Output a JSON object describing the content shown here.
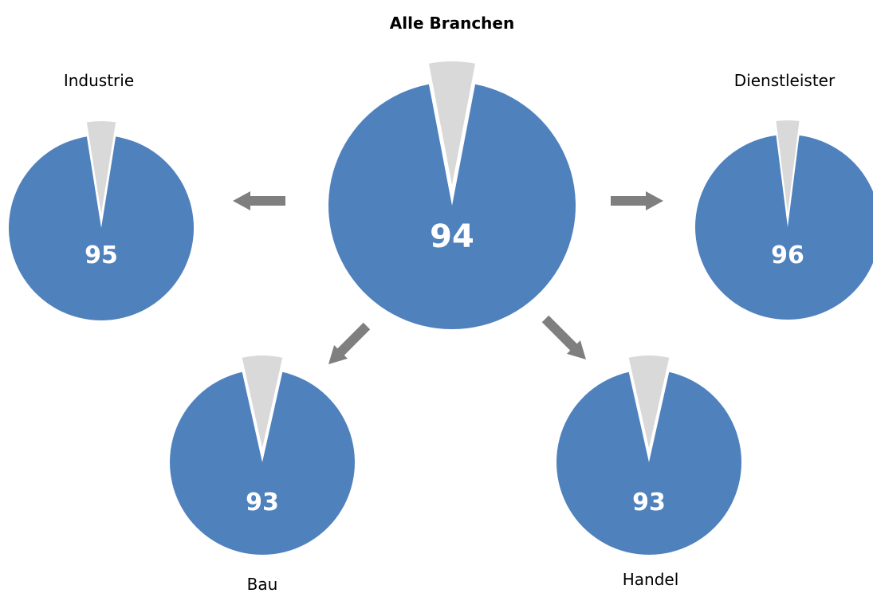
{
  "colors": {
    "primary": "#4f81bd",
    "remainder": "#d9d9d9",
    "arrow": "#7f7f7f",
    "background": "#ffffff"
  },
  "chart_data": {
    "type": "pie",
    "unit_max": 100,
    "pies": [
      {
        "label": "Alle Branchen",
        "value": 94,
        "value_label": "94"
      },
      {
        "label": "Industrie",
        "value": 95,
        "value_label": "95"
      },
      {
        "label": "Dienstleister",
        "value": 96,
        "value_label": "96"
      },
      {
        "label": "Bau",
        "value": 93,
        "value_label": "93"
      },
      {
        "label": "Handel",
        "value": 93,
        "value_label": "93"
      }
    ],
    "arrows": [
      {
        "from": "Alle Branchen",
        "to": "Industrie"
      },
      {
        "from": "Alle Branchen",
        "to": "Dienstleister"
      },
      {
        "from": "Alle Branchen",
        "to": "Bau"
      },
      {
        "from": "Alle Branchen",
        "to": "Handel"
      }
    ]
  }
}
